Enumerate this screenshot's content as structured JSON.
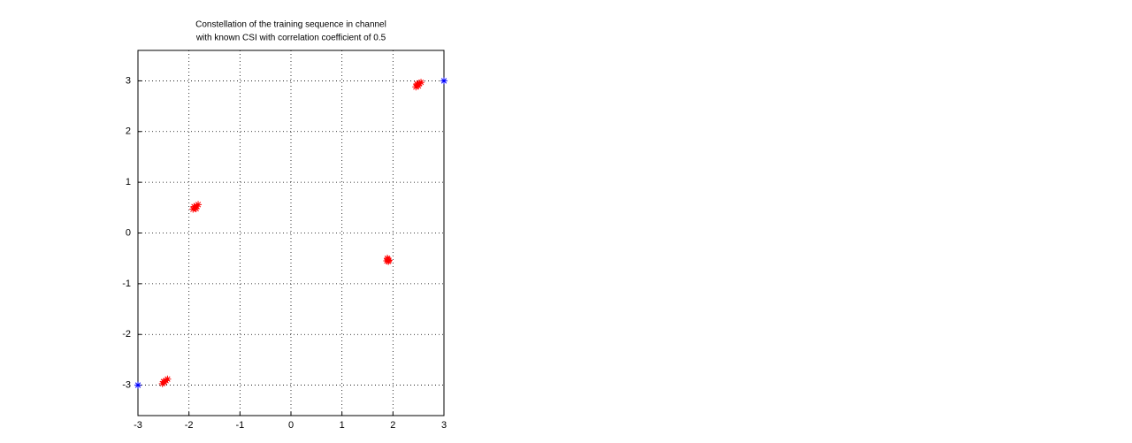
{
  "chart_data": {
    "type": "scatter",
    "title": [
      "Constellation of the training sequence in channel",
      "with known CSI with correlation coefficient of 0.5"
    ],
    "series": [
      {
        "color": "#ff0000",
        "x": [
          2.45,
          2.48,
          2.52,
          2.55,
          2.5,
          2.47,
          -1.92,
          -1.88,
          -1.85,
          -1.82,
          -1.9,
          -1.86,
          1.88,
          1.9,
          1.92,
          1.89,
          1.91,
          -2.52,
          -2.48,
          -2.45,
          -2.42,
          -2.5
        ],
        "values": [
          2.88,
          2.92,
          2.95,
          2.97,
          2.9,
          2.94,
          0.47,
          0.5,
          0.53,
          0.56,
          0.52,
          0.48,
          -0.55,
          -0.52,
          -0.54,
          -0.5,
          -0.56,
          -2.97,
          -2.94,
          -2.91,
          -2.88,
          -2.93
        ]
      },
      {
        "color": "#0000ff",
        "x": [
          -3,
          3
        ],
        "values": [
          -3,
          3
        ]
      }
    ],
    "xlim": [
      -3,
      3
    ],
    "xticks": [
      -3,
      -2,
      -1,
      0,
      1,
      2,
      3
    ],
    "ylim": [
      -3.6,
      3.6
    ],
    "yticks": [
      -3,
      -2,
      -1,
      0,
      1,
      2,
      3
    ],
    "grid": true
  }
}
